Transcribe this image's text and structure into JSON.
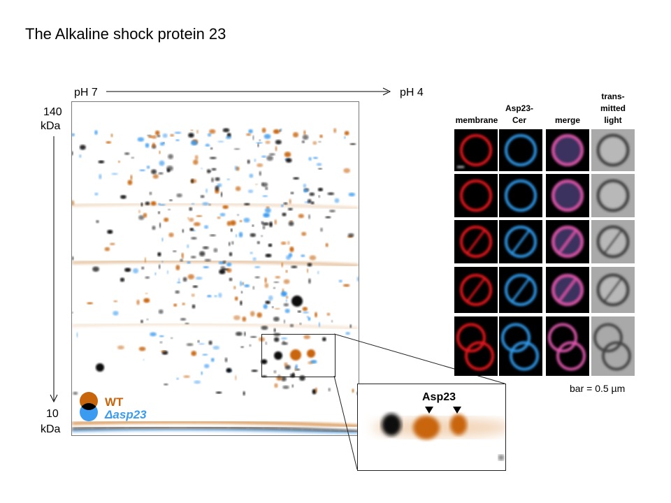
{
  "title": "The Alkaline shock protein 23",
  "gel": {
    "ph_left": "pH 7",
    "ph_right": "pH 4",
    "mw_top_value": "140",
    "mw_top_unit": "kDa",
    "mw_bottom_value": "10",
    "mw_bottom_unit": "kDa",
    "legend": [
      {
        "label": "WT",
        "color": "#c8650a"
      },
      {
        "label": "Δasp23",
        "color": "#3a9bf0"
      }
    ],
    "zoom_label": "Asp23"
  },
  "microscopy": {
    "columns": [
      "membrane",
      "Asp23-\nCer",
      "merge",
      "trans-\nmitted\nlight"
    ],
    "rows": 5,
    "scale_bar": "bar = 0.5 µm"
  }
}
